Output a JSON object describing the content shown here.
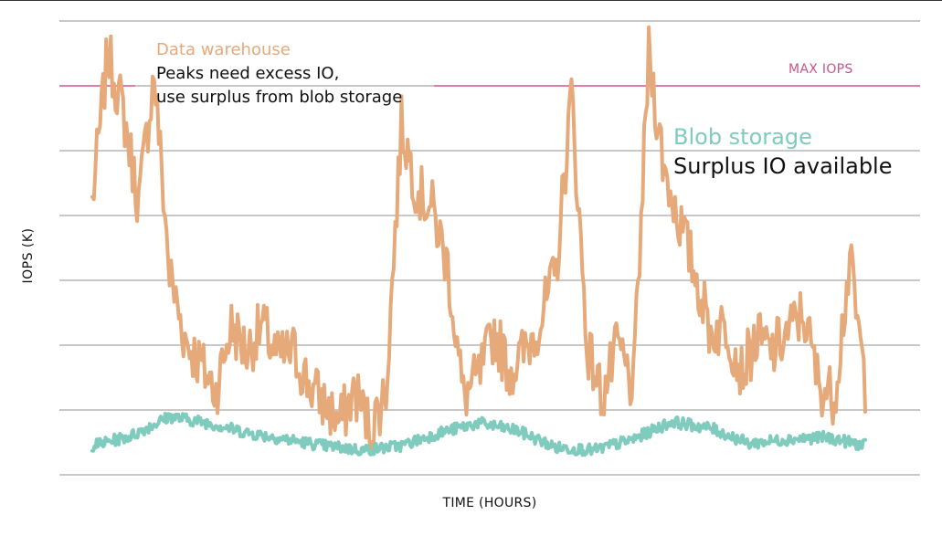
{
  "chart_data": {
    "type": "line",
    "xlabel": "TIME (HOURS)",
    "ylabel": "IOPS (K)",
    "grid": true,
    "ylim": [
      0,
      7
    ],
    "yticks_shown": false,
    "xticks_shown": false,
    "reference_line": {
      "label": "MAX IOPS",
      "y": 6,
      "color": "#d9609a"
    },
    "annotations": [
      {
        "title": "Data warehouse",
        "lines": [
          "Peaks need excess IO,",
          "use surplus from blob storage"
        ]
      },
      {
        "title": "Blob storage",
        "lines": [
          "Surplus IO available"
        ]
      }
    ],
    "series": [
      {
        "name": "Data warehouse",
        "color": "#e6a97a",
        "x": [
          0,
          2,
          4,
          6,
          8,
          10,
          12,
          14,
          16,
          18,
          20,
          22,
          24,
          26,
          28,
          30,
          32,
          34,
          36,
          38,
          40,
          42,
          44,
          46,
          48,
          50,
          52,
          54,
          56,
          58,
          60,
          62,
          64,
          66,
          68,
          70,
          72,
          74,
          76,
          78,
          80,
          82,
          84,
          86,
          88,
          90,
          92,
          94,
          96,
          98,
          100
        ],
        "values": [
          4.2,
          6.5,
          5.6,
          4.2,
          6.2,
          3.1,
          2.1,
          1.7,
          1.3,
          2.3,
          1.9,
          2.3,
          1.8,
          1.9,
          1.4,
          1.1,
          0.8,
          1.3,
          0.7,
          1.3,
          5.4,
          4.4,
          4.1,
          3.2,
          1.2,
          1.5,
          2.2,
          1.6,
          1.9,
          2.4,
          3.1,
          5.9,
          2.0,
          1.2,
          2.0,
          1.3,
          6.5,
          4.7,
          3.9,
          3.1,
          2.2,
          2.3,
          1.6,
          2.1,
          1.9,
          2.2,
          2.5,
          1.4,
          1.2,
          3.3,
          1.4
        ]
      },
      {
        "name": "Blob storage",
        "color": "#7fcbbd",
        "x": [
          0,
          5,
          10,
          15,
          20,
          25,
          30,
          35,
          40,
          45,
          50,
          55,
          60,
          65,
          70,
          75,
          80,
          85,
          90,
          95,
          100
        ],
        "values": [
          0.45,
          0.6,
          0.9,
          0.8,
          0.65,
          0.55,
          0.45,
          0.38,
          0.45,
          0.65,
          0.8,
          0.68,
          0.42,
          0.38,
          0.55,
          0.82,
          0.72,
          0.48,
          0.55,
          0.58,
          0.45
        ]
      }
    ]
  }
}
